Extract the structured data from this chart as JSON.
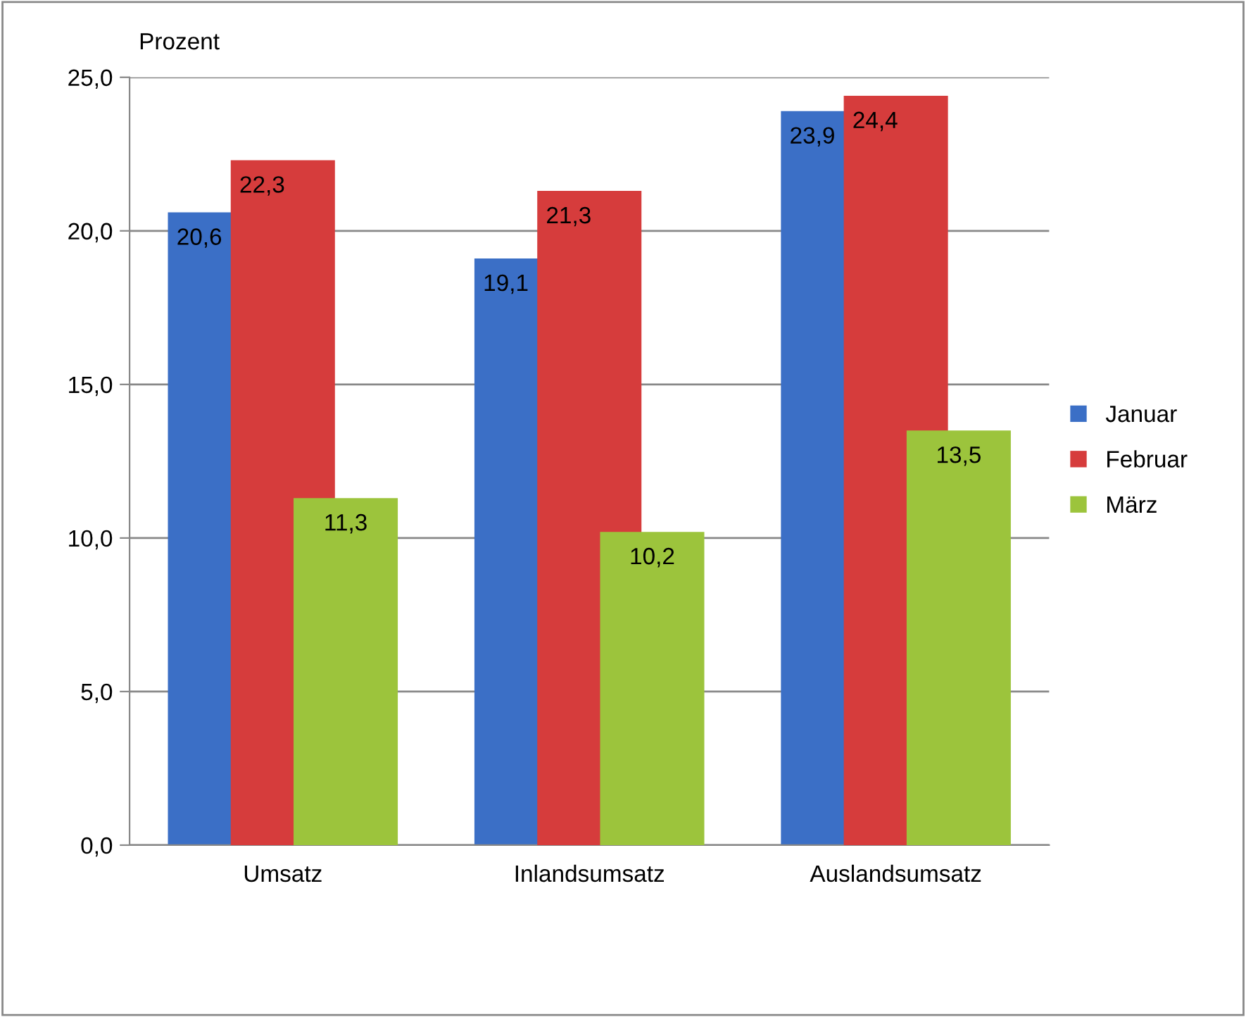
{
  "chart_data": {
    "type": "bar",
    "ylabel": "Prozent",
    "categories": [
      "Umsatz",
      "Inlandsumsatz",
      "Auslandsumsatz"
    ],
    "series": [
      {
        "name": "Januar",
        "color": "#3b6fc6",
        "values": [
          20.6,
          19.1,
          23.9
        ],
        "value_labels": [
          "20,6",
          "19,1",
          "23,9"
        ]
      },
      {
        "name": "Februar",
        "color": "#d63c3c",
        "values": [
          22.3,
          21.3,
          24.4
        ],
        "value_labels": [
          "22,3",
          "21,3",
          "24,4"
        ]
      },
      {
        "name": "März",
        "color": "#9cc43c",
        "values": [
          11.3,
          10.2,
          13.5
        ],
        "value_labels": [
          "11,3",
          "10,2",
          "13,5"
        ]
      }
    ],
    "ylim": [
      0,
      25
    ],
    "yticks": [
      {
        "value": 0,
        "label": "0,0"
      },
      {
        "value": 5,
        "label": "5,0"
      },
      {
        "value": 10,
        "label": "10,0"
      },
      {
        "value": 15,
        "label": "15,0"
      },
      {
        "value": 20,
        "label": "20,0"
      },
      {
        "value": 25,
        "label": "25,0"
      }
    ],
    "grid": "y",
    "legend": "right"
  }
}
